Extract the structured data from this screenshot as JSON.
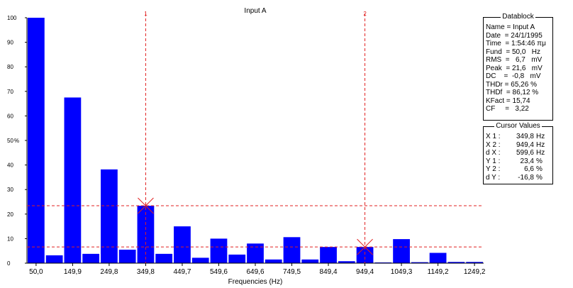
{
  "chart_data": {
    "type": "bar",
    "title": "Input A",
    "xlabel": "Frequencies (Hz)",
    "ylabel": "%",
    "ylim": [
      0,
      100
    ],
    "yticks": [
      "0",
      "10",
      "20",
      "30",
      "40",
      "50",
      "60",
      "70",
      "80",
      "90",
      "100"
    ],
    "x_tick_labels": [
      "50,0",
      "149,9",
      "249,8",
      "349,8",
      "449,7",
      "549,6",
      "649,6",
      "749,5",
      "849,4",
      "949,4",
      "1049,3",
      "1149,2",
      "1249,2"
    ],
    "values": [
      100,
      3.2,
      67.5,
      3.8,
      38.2,
      5.5,
      23.4,
      3.8,
      15.0,
      2.2,
      10.0,
      3.5,
      8.0,
      1.5,
      10.6,
      1.5,
      6.6,
      0.8,
      6.6,
      0.3,
      9.8,
      0.4,
      4.2,
      0.5,
      0.5
    ],
    "color": "#0000ff",
    "grid": false,
    "cursors": [
      {
        "label": "1",
        "x_index": 6,
        "y": 23.4
      },
      {
        "label": "2",
        "x_index": 18,
        "y": 6.6
      }
    ],
    "cursor_color": "#e02020"
  },
  "datablock": {
    "title": "Datablock",
    "lines": [
      "Name = Input A",
      "Date  = 24/1/1995",
      "Time  = 1:54:46 πμ",
      "Fund  = 50,0   Hz",
      "RMS  =   6,7   mV",
      "Peak  = 21,6   mV",
      "DC    =  -0,8   mV",
      "THDr = 65,26 %",
      "THDf  = 86,12 %",
      "KFact = 15,74",
      "CF     =   3,22"
    ]
  },
  "cursor_values": {
    "title": "Cursor Values",
    "rows": [
      {
        "label": "X 1 :",
        "value": "349,8",
        "unit": "Hz"
      },
      {
        "label": "X 2 :",
        "value": "949,4",
        "unit": "Hz"
      },
      {
        "label": "d X :",
        "value": "599,6",
        "unit": "Hz"
      },
      {
        "label": "Y 1 :",
        "value": "23,4",
        "unit": "%"
      },
      {
        "label": "Y 2 :",
        "value": "6,6",
        "unit": "%"
      },
      {
        "label": "d Y :",
        "value": "-16,8",
        "unit": "%"
      }
    ]
  }
}
